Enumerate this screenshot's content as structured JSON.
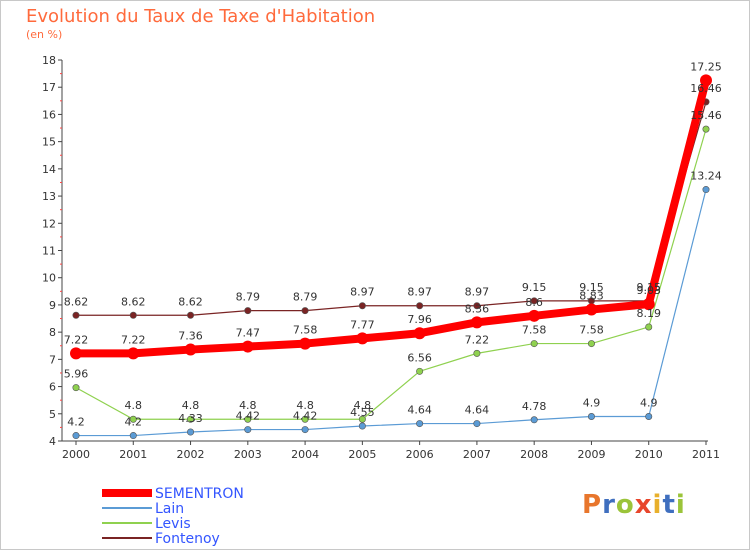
{
  "header": {
    "title": "Evolution du Taux de Taxe d'Habitation",
    "unit": "(en %)"
  },
  "logo": {
    "text": "Proxiti",
    "letter_colors": [
      "#e8762c",
      "#3f6fbf",
      "#9bc43a",
      "#e8462c",
      "#e8b02c",
      "#3f6fbf",
      "#9bc43a"
    ]
  },
  "chart_data": {
    "type": "line",
    "title": "Evolution du Taux de Taxe d'Habitation",
    "xlabel": "",
    "ylabel": "(en %)",
    "x": [
      "2000",
      "2001",
      "2002",
      "2003",
      "2004",
      "2005",
      "2006",
      "2007",
      "2008",
      "2009",
      "2010",
      "2011"
    ],
    "ylim": [
      4,
      18
    ],
    "yticks": [
      4,
      5,
      6,
      7,
      8,
      9,
      10,
      11,
      12,
      13,
      14,
      15,
      16,
      17,
      18
    ],
    "grid": false,
    "legend_position": "bottom-left",
    "series": [
      {
        "name": "SEMENTRON",
        "color": "#ff0000",
        "emphasis": true,
        "values": [
          7.22,
          7.22,
          7.36,
          7.47,
          7.58,
          7.77,
          7.96,
          8.36,
          8.6,
          8.83,
          9.03,
          17.25
        ],
        "labels": [
          "7.22",
          "7.22",
          "7.36",
          "7.47",
          "7.58",
          "7.77",
          "7.96",
          "8.36",
          "8.6",
          "8.83",
          "9.03",
          "17.25"
        ]
      },
      {
        "name": "Lain",
        "color": "#5b9bd5",
        "emphasis": false,
        "values": [
          4.2,
          4.2,
          4.33,
          4.42,
          4.42,
          4.55,
          4.64,
          4.64,
          4.78,
          4.9,
          4.9,
          13.24
        ],
        "labels": [
          "4.2",
          "4.2",
          "4.33",
          "4.42",
          "4.42",
          "4.55",
          "4.64",
          "4.64",
          "4.78",
          "4.9",
          "4.9",
          "13.24"
        ]
      },
      {
        "name": "Levis",
        "color": "#8fd14f",
        "emphasis": false,
        "values": [
          5.96,
          4.8,
          4.8,
          4.8,
          4.8,
          4.8,
          6.56,
          7.22,
          7.58,
          7.58,
          8.19,
          15.46
        ],
        "labels": [
          "5.96",
          "4.8",
          "4.8",
          "4.8",
          "4.8",
          "4.8",
          "6.56",
          "7.22",
          "7.58",
          "7.58",
          "8.19",
          "15.46"
        ]
      },
      {
        "name": "Fontenoy",
        "color": "#7a2424",
        "emphasis": false,
        "values": [
          8.62,
          8.62,
          8.62,
          8.79,
          8.79,
          8.97,
          8.97,
          8.97,
          9.15,
          9.15,
          9.15,
          16.46
        ],
        "labels": [
          "8.62",
          "8.62",
          "8.62",
          "8.79",
          "8.79",
          "8.97",
          "8.97",
          "8.97",
          "9.15",
          "9.15",
          "9.15",
          "16.46"
        ]
      }
    ]
  }
}
